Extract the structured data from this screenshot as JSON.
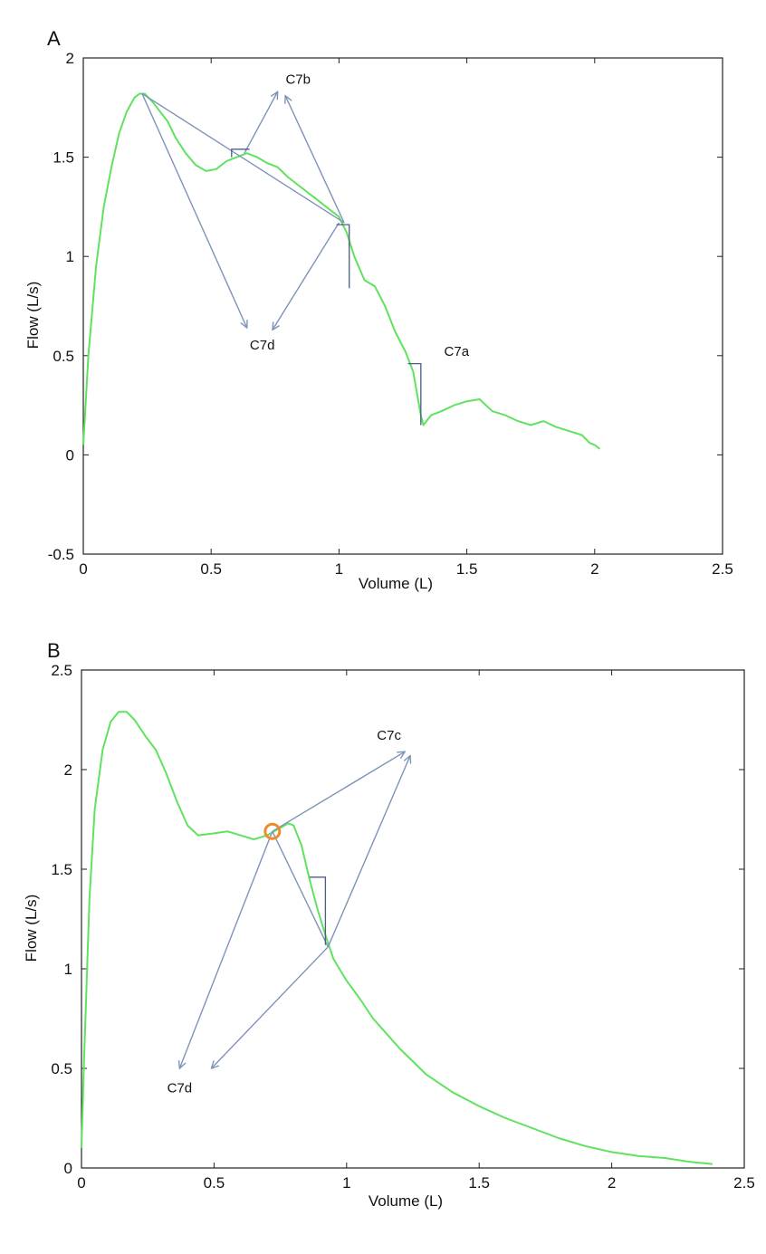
{
  "chart_data": [
    {
      "panel_label": "A",
      "type": "line",
      "xlabel": "Volume (L)",
      "ylabel": "Flow (L/s)",
      "xlim": [
        0,
        2.5
      ],
      "ylim": [
        -0.5,
        2
      ],
      "xticks": [
        "0",
        "0.5",
        "1",
        "1.5",
        "2",
        "2.5"
      ],
      "yticks": [
        "-0.5",
        "0",
        "0.5",
        "1",
        "1.5",
        "2"
      ],
      "grid": false,
      "line_color": "#5fe35f",
      "annotation_color": "#7e93b8",
      "series": [
        {
          "x": [
            0,
            0.02,
            0.05,
            0.08,
            0.11,
            0.14,
            0.17,
            0.2,
            0.22,
            0.24,
            0.27,
            0.3,
            0.33,
            0.36,
            0.4,
            0.44,
            0.48,
            0.52,
            0.56,
            0.6,
            0.64,
            0.68,
            0.72,
            0.76,
            0.8,
            0.85,
            0.9,
            0.95,
            1.0,
            1.03,
            1.06,
            1.1,
            1.14,
            1.18,
            1.22,
            1.26,
            1.29,
            1.32,
            1.33,
            1.36,
            1.4,
            1.45,
            1.5,
            1.55,
            1.6,
            1.65,
            1.7,
            1.75,
            1.8,
            1.85,
            1.9,
            1.95,
            1.98,
            2.0,
            2.02
          ],
          "y": [
            0.05,
            0.5,
            0.95,
            1.25,
            1.45,
            1.62,
            1.73,
            1.8,
            1.82,
            1.82,
            1.78,
            1.73,
            1.68,
            1.6,
            1.52,
            1.46,
            1.43,
            1.44,
            1.48,
            1.5,
            1.52,
            1.5,
            1.47,
            1.45,
            1.4,
            1.35,
            1.3,
            1.25,
            1.2,
            1.12,
            1.0,
            0.88,
            0.85,
            0.75,
            0.62,
            0.52,
            0.42,
            0.2,
            0.15,
            0.2,
            0.22,
            0.25,
            0.27,
            0.28,
            0.22,
            0.2,
            0.17,
            0.15,
            0.17,
            0.14,
            0.12,
            0.1,
            0.06,
            0.05,
            0.03
          ]
        }
      ],
      "annotations": [
        {
          "text": "C7b",
          "x": 0.84,
          "y": 1.87
        },
        {
          "text": "C7d",
          "x": 0.7,
          "y": 0.53
        },
        {
          "text": "C7a",
          "x": 1.46,
          "y": 0.5
        }
      ],
      "arrows": [
        {
          "from": [
            0.23,
            1.82
          ],
          "to": [
            0.64,
            0.64
          ]
        },
        {
          "from": [
            1.0,
            1.17
          ],
          "to": [
            0.74,
            0.63
          ]
        },
        {
          "from": [
            0.63,
            1.52
          ],
          "to": [
            0.76,
            1.83
          ]
        },
        {
          "from": [
            1.02,
            1.17
          ],
          "to": [
            0.79,
            1.81
          ]
        }
      ],
      "segments": [
        {
          "from": [
            0.23,
            1.82
          ],
          "to": [
            1.02,
            1.17
          ]
        }
      ],
      "brackets": [
        {
          "path": [
            [
              0.58,
              1.5
            ],
            [
              0.58,
              1.54
            ],
            [
              0.65,
              1.54
            ]
          ]
        },
        {
          "path": [
            [
              0.99,
              1.16
            ],
            [
              1.04,
              1.16
            ],
            [
              1.04,
              0.84
            ]
          ]
        },
        {
          "path": [
            [
              1.27,
              0.46
            ],
            [
              1.32,
              0.46
            ],
            [
              1.32,
              0.15
            ]
          ]
        }
      ]
    },
    {
      "panel_label": "B",
      "type": "line",
      "xlabel": "Volume (L)",
      "ylabel": "Flow (L/s)",
      "xlim": [
        0,
        2.5
      ],
      "ylim": [
        0,
        2.5
      ],
      "xticks": [
        "0",
        "0.5",
        "1",
        "1.5",
        "2",
        "2.5"
      ],
      "yticks": [
        "0",
        "0.5",
        "1",
        "1.5",
        "2",
        "2.5"
      ],
      "grid": false,
      "line_color": "#5fe35f",
      "annotation_color": "#7e93b8",
      "marker_color": "#f08a2e",
      "series": [
        {
          "x": [
            0,
            0.01,
            0.03,
            0.05,
            0.08,
            0.11,
            0.14,
            0.17,
            0.2,
            0.24,
            0.28,
            0.32,
            0.36,
            0.4,
            0.44,
            0.5,
            0.55,
            0.6,
            0.65,
            0.7,
            0.74,
            0.78,
            0.8,
            0.83,
            0.86,
            0.89,
            0.92,
            0.95,
            1.0,
            1.05,
            1.1,
            1.2,
            1.3,
            1.4,
            1.5,
            1.6,
            1.7,
            1.8,
            1.9,
            2.0,
            2.1,
            2.2,
            2.3,
            2.38
          ],
          "y": [
            0.1,
            0.55,
            1.35,
            1.8,
            2.1,
            2.24,
            2.29,
            2.29,
            2.25,
            2.17,
            2.1,
            1.98,
            1.84,
            1.72,
            1.67,
            1.68,
            1.69,
            1.67,
            1.65,
            1.67,
            1.7,
            1.73,
            1.72,
            1.62,
            1.45,
            1.3,
            1.17,
            1.05,
            0.94,
            0.85,
            0.75,
            0.6,
            0.47,
            0.38,
            0.31,
            0.25,
            0.2,
            0.15,
            0.11,
            0.08,
            0.06,
            0.05,
            0.03,
            0.02
          ]
        }
      ],
      "annotations": [
        {
          "text": "C7c",
          "x": 1.16,
          "y": 2.15
        },
        {
          "text": "C7d",
          "x": 0.37,
          "y": 0.38
        }
      ],
      "markers": [
        {
          "x": 0.72,
          "y": 1.69
        }
      ],
      "arrows": [
        {
          "from": [
            0.72,
            1.69
          ],
          "to": [
            1.22,
            2.09
          ]
        },
        {
          "from": [
            0.93,
            1.11
          ],
          "to": [
            1.24,
            2.07
          ]
        },
        {
          "from": [
            0.72,
            1.69
          ],
          "to": [
            0.37,
            0.5
          ]
        },
        {
          "from": [
            0.93,
            1.11
          ],
          "to": [
            0.49,
            0.5
          ]
        }
      ],
      "segments": [
        {
          "from": [
            0.72,
            1.69
          ],
          "to": [
            0.93,
            1.11
          ]
        }
      ],
      "brackets": [
        {
          "path": [
            [
              0.86,
              1.46
            ],
            [
              0.92,
              1.46
            ],
            [
              0.92,
              1.12
            ]
          ]
        }
      ]
    }
  ]
}
